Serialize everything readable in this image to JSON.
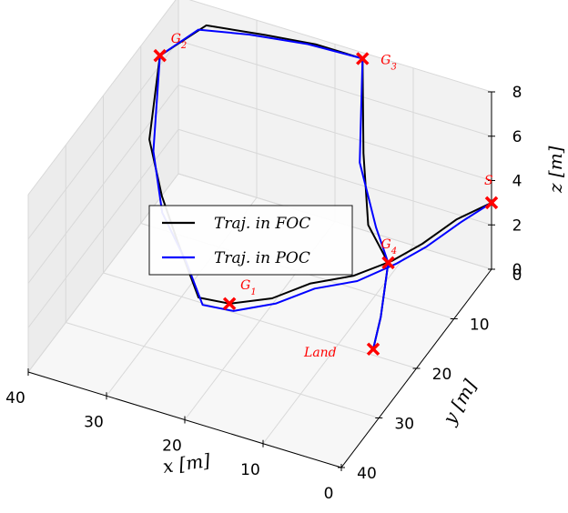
{
  "chart_data": {
    "type": "line",
    "projection": "3d",
    "xlabel": "x [m]",
    "ylabel": "y [m]",
    "zlabel": "z [m]",
    "xlim": [
      0,
      40
    ],
    "ylim": [
      0,
      40
    ],
    "zlim": [
      0,
      8
    ],
    "x_ticks": [
      "0",
      "10",
      "20",
      "30",
      "40"
    ],
    "y_ticks": [
      "0",
      "10",
      "20",
      "30",
      "40"
    ],
    "z_ticks": [
      "0",
      "2",
      "4",
      "6",
      "8"
    ],
    "grid": true,
    "legend_position": "center",
    "waypoints": [
      {
        "label": "S",
        "x": 0,
        "y": 0,
        "z": 3
      },
      {
        "label": "G1",
        "x": 21,
        "y": 26,
        "z": 2
      },
      {
        "label": "G2",
        "x": 39,
        "y": 7,
        "z": 7
      },
      {
        "label": "G3",
        "x": 16,
        "y": 1,
        "z": 8
      },
      {
        "label": "G4",
        "x": 6,
        "y": 15,
        "z": 3
      },
      {
        "label": "Land",
        "x": 6,
        "y": 19,
        "z": 0
      }
    ],
    "series": [
      {
        "name": "Traj. in FOC",
        "color": "#000000",
        "points": [
          [
            0,
            0,
            3
          ],
          [
            3,
            3,
            2.6
          ],
          [
            5,
            8,
            2.4
          ],
          [
            7,
            12,
            2.3
          ],
          [
            10,
            16,
            2.2
          ],
          [
            14,
            19,
            2.1
          ],
          [
            17,
            23,
            2
          ],
          [
            21,
            26,
            2
          ],
          [
            24,
            28,
            2.4
          ],
          [
            29,
            23,
            3.2
          ],
          [
            33,
            19,
            4
          ],
          [
            37,
            14,
            5
          ],
          [
            39,
            7,
            7
          ],
          [
            35,
            3,
            7.9
          ],
          [
            28,
            2,
            8
          ],
          [
            22,
            1,
            8
          ],
          [
            16,
            1,
            8
          ],
          [
            13,
            7,
            5.4
          ],
          [
            10,
            12,
            3.6
          ],
          [
            6,
            15,
            3
          ],
          [
            6,
            16,
            2
          ],
          [
            6,
            17,
            1
          ],
          [
            6,
            19,
            0
          ]
        ]
      },
      {
        "name": "Traj. in POC",
        "color": "#0000ff",
        "points": [
          [
            0,
            0,
            3
          ],
          [
            2,
            4,
            2.8
          ],
          [
            4,
            9,
            2.6
          ],
          [
            6,
            13,
            2.5
          ],
          [
            9,
            17,
            2.3
          ],
          [
            13,
            20,
            2.2
          ],
          [
            16,
            24,
            2.1
          ],
          [
            20,
            27,
            2
          ],
          [
            23,
            29,
            2.4
          ],
          [
            27,
            25,
            3
          ],
          [
            32,
            21,
            3.8
          ],
          [
            36,
            15,
            4.8
          ],
          [
            39,
            7,
            7
          ],
          [
            36,
            3,
            7.6
          ],
          [
            30,
            2,
            7.8
          ],
          [
            23,
            1,
            7.9
          ],
          [
            16,
            1,
            8
          ],
          [
            13,
            8,
            5.2
          ],
          [
            9,
            12,
            3.6
          ],
          [
            6,
            15,
            3
          ],
          [
            6,
            16,
            2
          ],
          [
            6,
            17,
            1
          ],
          [
            6,
            19,
            0
          ]
        ]
      }
    ]
  }
}
